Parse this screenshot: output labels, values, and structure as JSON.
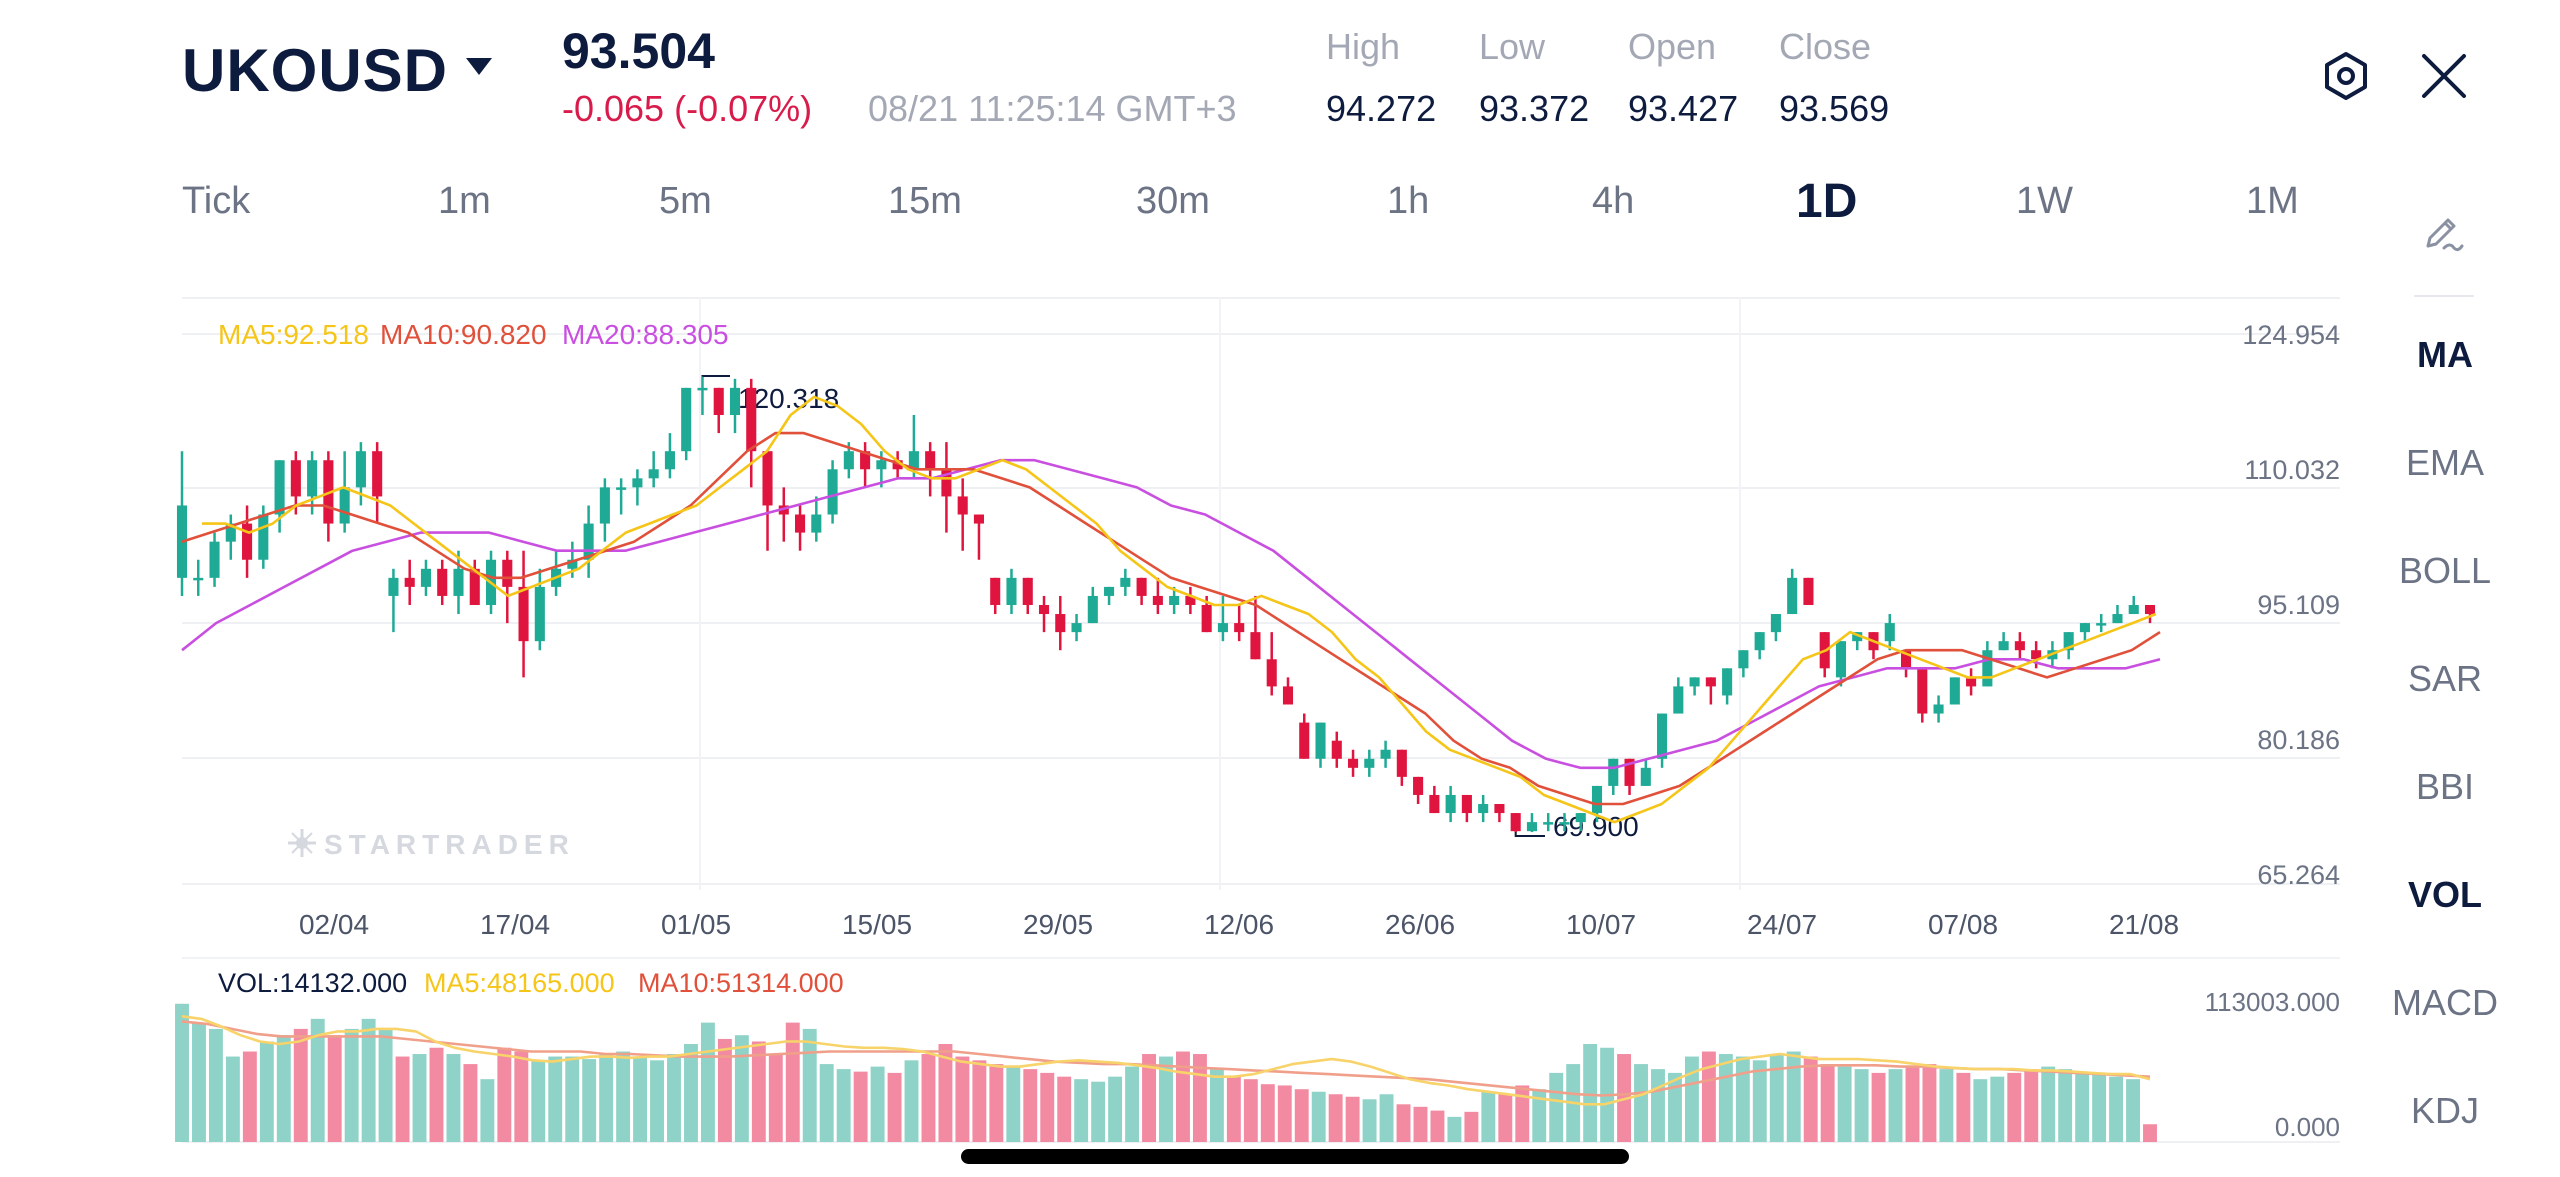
{
  "header": {
    "symbol": "UKOUSD",
    "price": "93.504",
    "change": "-0.065",
    "change_pct": "(-0.07%)",
    "timestamp": "08/21 11:25:14 GMT+3",
    "stats": [
      {
        "label": "High",
        "value": "94.272"
      },
      {
        "label": "Low",
        "value": "93.372"
      },
      {
        "label": "Open",
        "value": "93.427"
      },
      {
        "label": "Close",
        "value": "93.569"
      }
    ]
  },
  "timeframes": [
    "Tick",
    "1m",
    "5m",
    "15m",
    "30m",
    "1h",
    "4h",
    "1D",
    "1W",
    "1M"
  ],
  "active_timeframe": "1D",
  "indicators": [
    "MA",
    "EMA",
    "BOLL",
    "SAR",
    "BBI",
    "VOL",
    "MACD",
    "KDJ"
  ],
  "active_indicators": [
    "MA",
    "VOL"
  ],
  "colors": {
    "up": "#1faa96",
    "down": "#e0153f",
    "ma5": "#f5c518",
    "ma10": "#e0503a",
    "ma20": "#c94fe0",
    "accent": "#0d1b3e"
  },
  "icons": {
    "symbol_dropdown": "caret-down-icon",
    "settings": "hexagon-settings-icon",
    "close": "close-icon",
    "draw": "pencil-draw-icon"
  },
  "watermark": "STARTRADER",
  "chart_data": [
    {
      "type": "candlestick",
      "legend": [
        {
          "label": "MA5:92.518",
          "color": "#f5c518"
        },
        {
          "label": "MA10:90.820",
          "color": "#e0503a"
        },
        {
          "label": "MA20:88.305",
          "color": "#c94fe0"
        }
      ],
      "y_ticks": [
        "124.954",
        "110.032",
        "95.109",
        "80.186",
        "65.264"
      ],
      "ylim": [
        65.264,
        124.954
      ],
      "x_ticks": [
        "02/04",
        "17/04",
        "01/05",
        "15/05",
        "29/05",
        "12/06",
        "26/06",
        "10/07",
        "24/07",
        "07/08",
        "21/08"
      ],
      "annotations": {
        "max": "120.318",
        "min": "69.900"
      },
      "candles": [
        [
          98,
          106,
          96,
          112
        ],
        [
          98,
          98,
          96,
          100
        ],
        [
          98,
          102,
          97,
          103
        ],
        [
          102,
          104,
          100,
          105
        ],
        [
          104,
          100,
          98,
          106
        ],
        [
          100,
          105,
          99,
          106
        ],
        [
          105,
          111,
          103,
          111
        ],
        [
          111,
          107,
          105,
          112
        ],
        [
          107,
          111,
          105,
          112
        ],
        [
          111,
          104,
          102,
          112
        ],
        [
          104,
          108,
          103,
          112
        ],
        [
          108,
          112,
          106,
          113
        ],
        [
          112,
          107,
          104,
          113
        ],
        [
          96,
          98,
          92,
          99
        ],
        [
          98,
          97,
          95,
          100
        ],
        [
          97,
          99,
          96,
          100
        ],
        [
          99,
          96,
          95,
          100
        ],
        [
          96,
          99,
          94,
          101
        ],
        [
          99,
          95,
          95,
          100
        ],
        [
          95,
          100,
          94,
          101
        ],
        [
          100,
          97,
          93,
          101
        ],
        [
          97,
          91,
          87,
          101
        ],
        [
          91,
          97,
          90,
          99
        ],
        [
          97,
          99,
          96,
          101
        ],
        [
          99,
          100,
          98,
          102
        ],
        [
          100,
          104,
          98,
          106
        ],
        [
          104,
          108,
          102,
          109
        ],
        [
          108,
          108,
          105,
          109
        ],
        [
          108,
          109,
          106,
          110
        ],
        [
          109,
          110,
          108,
          112
        ],
        [
          110,
          112,
          109,
          114
        ],
        [
          112,
          119,
          111,
          119
        ],
        [
          119,
          119,
          116,
          120.3
        ],
        [
          119,
          116,
          114,
          119
        ],
        [
          116,
          119,
          114,
          120
        ],
        [
          119,
          112,
          108,
          120
        ],
        [
          112,
          106,
          101,
          112
        ],
        [
          106,
          105,
          102,
          108
        ],
        [
          105,
          103,
          101,
          106
        ],
        [
          103,
          105,
          102,
          107
        ],
        [
          105,
          110,
          104,
          111
        ],
        [
          110,
          112,
          109,
          113
        ],
        [
          112,
          110,
          108,
          113
        ],
        [
          110,
          111,
          108,
          112
        ],
        [
          111,
          110,
          109,
          112
        ],
        [
          110,
          112,
          109,
          116
        ],
        [
          112,
          110,
          107,
          113
        ],
        [
          110,
          107,
          103,
          113
        ],
        [
          107,
          105,
          101,
          109
        ],
        [
          105,
          104,
          100,
          105
        ],
        [
          98,
          95,
          94,
          98
        ],
        [
          95,
          98,
          94,
          99
        ],
        [
          98,
          95,
          94,
          98
        ],
        [
          95,
          94,
          92,
          96
        ],
        [
          94,
          92,
          90,
          96
        ],
        [
          92,
          93,
          91,
          94
        ],
        [
          93,
          96,
          93,
          97
        ],
        [
          96,
          97,
          95,
          97
        ],
        [
          97,
          98,
          96,
          99
        ],
        [
          98,
          96,
          95,
          98
        ],
        [
          96,
          95,
          94,
          98
        ],
        [
          95,
          96,
          94,
          97
        ],
        [
          96,
          95,
          94,
          97
        ],
        [
          95,
          92,
          92,
          96
        ],
        [
          92,
          93,
          91,
          96
        ],
        [
          93,
          92,
          91,
          95
        ],
        [
          92,
          89,
          89,
          96
        ],
        [
          89,
          86,
          85,
          92
        ],
        [
          86,
          84,
          84,
          87
        ],
        [
          82,
          78,
          78,
          83
        ],
        [
          78,
          82,
          77,
          82
        ],
        [
          80,
          78,
          77,
          81
        ],
        [
          78,
          77,
          76,
          79
        ],
        [
          77,
          78,
          76,
          79
        ],
        [
          78,
          79,
          77,
          80
        ],
        [
          79,
          76,
          75,
          79
        ],
        [
          76,
          74,
          73,
          76
        ],
        [
          74,
          72,
          72,
          75
        ],
        [
          72,
          74,
          71,
          75
        ],
        [
          74,
          72,
          71,
          74
        ],
        [
          72,
          73,
          71,
          74
        ],
        [
          73,
          72,
          71,
          73
        ],
        [
          72,
          70,
          69.9,
          72
        ],
        [
          70,
          71,
          69.9,
          72
        ],
        [
          71,
          71,
          70,
          72
        ],
        [
          71,
          71,
          70,
          72
        ],
        [
          71,
          72,
          70,
          72
        ],
        [
          72,
          75,
          71,
          75
        ],
        [
          75,
          78,
          74,
          78
        ],
        [
          78,
          75,
          74,
          78
        ],
        [
          75,
          77,
          75,
          78
        ],
        [
          78,
          83,
          77,
          83
        ],
        [
          83,
          86,
          83,
          87
        ],
        [
          86,
          87,
          85,
          87
        ],
        [
          87,
          86,
          84,
          87
        ],
        [
          85,
          88,
          84,
          88
        ],
        [
          88,
          90,
          87,
          90
        ],
        [
          90,
          92,
          89,
          92
        ],
        [
          92,
          94,
          91,
          94
        ],
        [
          94,
          98,
          94,
          99
        ],
        [
          98,
          95,
          95,
          98
        ],
        [
          92,
          88,
          87,
          92
        ],
        [
          87,
          91,
          86,
          91
        ],
        [
          91,
          92,
          90,
          92
        ],
        [
          92,
          90,
          89,
          92
        ],
        [
          91,
          93,
          90,
          94
        ],
        [
          90,
          88,
          87,
          90
        ],
        [
          88,
          83,
          82,
          88
        ],
        [
          83,
          84,
          82,
          85
        ],
        [
          84,
          87,
          84,
          87
        ],
        [
          87,
          86,
          85,
          88
        ],
        [
          86,
          90,
          86,
          91
        ],
        [
          90,
          91,
          90,
          92
        ],
        [
          91,
          90,
          89,
          92
        ],
        [
          90,
          89,
          88,
          91
        ],
        [
          89,
          90,
          88,
          91
        ],
        [
          90,
          92,
          89,
          92
        ],
        [
          92,
          93,
          91,
          93
        ],
        [
          93,
          93,
          92,
          94
        ],
        [
          93,
          94,
          93,
          95
        ],
        [
          94,
          95,
          94,
          96
        ],
        [
          95,
          94,
          93,
          95
        ]
      ],
      "ma5": [
        104,
        104,
        103,
        104,
        106,
        107,
        108,
        107,
        106,
        104,
        102,
        100,
        98,
        96,
        97,
        98,
        99,
        101,
        103,
        104,
        105,
        106,
        108,
        110,
        112,
        116,
        118,
        117,
        115,
        112,
        110,
        109,
        109,
        110,
        111,
        110,
        108,
        106,
        104,
        101,
        99,
        97,
        96,
        95,
        95,
        96,
        95,
        94,
        92,
        89,
        87,
        84,
        81,
        79,
        78,
        77,
        76,
        74,
        73,
        72,
        71,
        72,
        73,
        75,
        77,
        80,
        83,
        86,
        89,
        90,
        92,
        91,
        90,
        89,
        88,
        87,
        87,
        88,
        89,
        90,
        91,
        92,
        93,
        94
      ],
      "ma10": [
        102,
        103,
        104,
        105,
        106,
        106,
        105,
        104,
        103,
        101,
        99,
        98,
        98,
        99,
        100,
        101,
        102,
        104,
        106,
        109,
        112,
        114,
        114,
        113,
        112,
        111,
        110,
        110,
        110,
        109,
        108,
        106,
        104,
        102,
        100,
        98,
        97,
        96,
        95,
        93,
        91,
        89,
        87,
        85,
        83,
        80,
        78,
        77,
        75,
        74,
        73,
        73,
        74,
        75,
        77,
        79,
        81,
        83,
        85,
        87,
        89,
        90,
        90,
        90,
        89,
        88,
        87,
        88,
        89,
        90,
        92
      ],
      "ma20": [
        90,
        93,
        95,
        97,
        99,
        101,
        102,
        103,
        103,
        103,
        102,
        101,
        101,
        101,
        102,
        103,
        104,
        105,
        106,
        107,
        108,
        109,
        109,
        110,
        111,
        111,
        110,
        109,
        108,
        106,
        105,
        103,
        101,
        98,
        95,
        92,
        89,
        86,
        83,
        80,
        78,
        77,
        77,
        78,
        79,
        80,
        82,
        84,
        86,
        87,
        88,
        88,
        88,
        89,
        89,
        88,
        88,
        88,
        89
      ]
    },
    {
      "type": "bar",
      "legend": [
        {
          "label": "VOL:14132.000",
          "color": "#0d1b3e"
        },
        {
          "label": "MA5:48165.000",
          "color": "#f5c518"
        },
        {
          "label": "MA10:51314.000",
          "color": "#e0503a"
        }
      ],
      "y_ticks": [
        "113003.000",
        "0.000"
      ],
      "ylim": [
        0,
        113003
      ],
      "values": [
        110000,
        95000,
        90000,
        68000,
        72000,
        80000,
        85000,
        90000,
        98000,
        85000,
        90000,
        98000,
        90000,
        68000,
        70000,
        75000,
        70000,
        62000,
        50000,
        75000,
        72000,
        65000,
        68000,
        68000,
        66000,
        70000,
        72000,
        68000,
        65000,
        70000,
        78000,
        95000,
        82000,
        85000,
        80000,
        70000,
        95000,
        90000,
        62000,
        58000,
        56000,
        60000,
        55000,
        65000,
        70000,
        78000,
        68000,
        65000,
        62000,
        60000,
        58000,
        55000,
        52000,
        50000,
        48000,
        52000,
        60000,
        70000,
        68000,
        72000,
        70000,
        58000,
        52000,
        50000,
        46000,
        45000,
        42000,
        40000,
        38000,
        36000,
        34000,
        38000,
        30000,
        28000,
        25000,
        20000,
        24000,
        40000,
        38000,
        45000,
        42000,
        55000,
        62000,
        78000,
        75000,
        70000,
        62000,
        58000,
        55000,
        68000,
        72000,
        70000,
        68000,
        65000,
        70000,
        72000,
        68000,
        62000,
        60000,
        58000,
        55000,
        58000,
        60000,
        62000,
        58000,
        55000,
        50000,
        52000,
        55000,
        58000,
        60000,
        58000,
        56000,
        55000,
        52000,
        50000,
        14132
      ],
      "ma5": [
        100000,
        98000,
        92000,
        85000,
        80000,
        78000,
        80000,
        85000,
        88000,
        88000,
        90000,
        90000,
        88000,
        80000,
        75000,
        72000,
        70000,
        68000,
        65000,
        64000,
        66000,
        68000,
        68000,
        67000,
        68000,
        68000,
        70000,
        72000,
        74000,
        76000,
        78000,
        80000,
        80000,
        78000,
        76000,
        75000,
        75000,
        74000,
        72000,
        68000,
        64000,
        62000,
        60000,
        60000,
        62000,
        64000,
        65000,
        64000,
        63000,
        61000,
        59000,
        56000,
        54000,
        52000,
        52000,
        54000,
        58000,
        62000,
        64000,
        66000,
        64000,
        60000,
        55000,
        50000,
        47000,
        45000,
        42000,
        40000,
        38000,
        36000,
        34000,
        32000,
        30000,
        30000,
        34000,
        38000,
        45000,
        52000,
        58000,
        62000,
        66000,
        68000,
        70000,
        68000,
        66000,
        66000,
        66000,
        65000,
        64000,
        62000,
        60000,
        59000,
        58000,
        58000,
        58000,
        57000,
        57000,
        56000,
        55000,
        54000,
        54000,
        50000
      ],
      "ma10": [
        96000,
        94000,
        90000,
        86000,
        84000,
        84000,
        84000,
        84000,
        84000,
        82000,
        80000,
        78000,
        76000,
        74000,
        72000,
        72000,
        72000,
        70000,
        70000,
        69000,
        68000,
        68000,
        68000,
        69000,
        70000,
        71000,
        72000,
        72000,
        72000,
        72000,
        72000,
        72000,
        70000,
        68000,
        66000,
        64000,
        63000,
        62000,
        62000,
        61000,
        60000,
        59000,
        58000,
        57000,
        56000,
        55000,
        54000,
        53000,
        52000,
        51000,
        50000,
        48000,
        46000,
        44000,
        42000,
        40000,
        38000,
        37000,
        38000,
        40000,
        44000,
        48000,
        52000,
        56000,
        58000,
        60000,
        61000,
        61000,
        61000,
        60000,
        60000,
        59000,
        58000,
        58000,
        57000,
        56000,
        55000,
        54000,
        53000,
        52000
      ]
    }
  ]
}
